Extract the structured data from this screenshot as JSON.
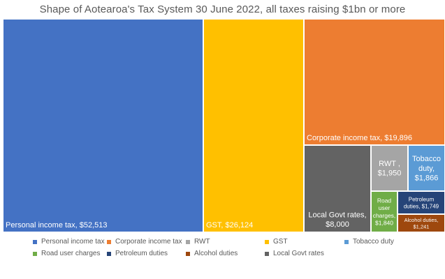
{
  "chart_data": {
    "type": "treemap",
    "title": "Shape of Aotearoa's Tax System 30 June 2022, all taxes raising $1bn or more",
    "items": [
      {
        "name": "Personal income tax",
        "label": "Personal income tax,  $52,513",
        "value": 52513,
        "color": "#4472C4"
      },
      {
        "name": "GST",
        "label": "GST,  $26,124",
        "value": 26124,
        "color": "#FFC000"
      },
      {
        "name": "Corporate income tax",
        "label": "Corporate income tax,  $19,896",
        "value": 19896,
        "color": "#ED7D31"
      },
      {
        "name": "Local Govt rates",
        "label": "Local Govt rates, $8,000",
        "value": 8000,
        "color": "#636363"
      },
      {
        "name": "RWT",
        "label": "RWT , $1,950",
        "value": 1950,
        "color": "#A5A5A5"
      },
      {
        "name": "Tobacco duty",
        "label": "Tobacco duty, $1,866",
        "value": 1866,
        "color": "#5B9BD5"
      },
      {
        "name": "Road  user charges",
        "label": "Road user charges, $1,840",
        "value": 1840,
        "color": "#70AD47"
      },
      {
        "name": "Petroleum duties",
        "label": "Petroleum duties, $1,749",
        "value": 1749,
        "color": "#264478"
      },
      {
        "name": "Alcohol duties",
        "label": "Alcohol duties, $1,241",
        "value": 1241,
        "color": "#9E480E"
      }
    ],
    "legend": [
      {
        "name": "Personal income tax",
        "color": "#4472C4"
      },
      {
        "name": "Corporate income tax",
        "color": "#ED7D31"
      },
      {
        "name": "RWT",
        "color": "#A5A5A5"
      },
      {
        "name": "GST",
        "color": "#FFC000"
      },
      {
        "name": "Tobacco duty",
        "color": "#5B9BD5"
      },
      {
        "name": "Road  user charges",
        "color": "#70AD47"
      },
      {
        "name": "Petroleum duties",
        "color": "#264478"
      },
      {
        "name": "Alcohol duties",
        "color": "#9E480E"
      },
      {
        "name": "Local Govt rates",
        "color": "#636363"
      }
    ],
    "legend_position": "bottom"
  }
}
